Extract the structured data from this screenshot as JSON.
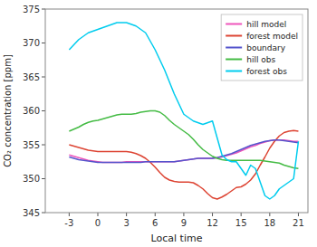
{
  "chart_data": {
    "type": "line",
    "xlabel": "Local time",
    "ylabel": "CO₂ concentration [ppm]",
    "xlim": [
      -5.5,
      22.0
    ],
    "ylim": [
      345,
      375
    ],
    "xticks": [
      -3,
      0,
      3,
      6,
      9,
      12,
      15,
      18,
      21
    ],
    "yticks": [
      345,
      350,
      355,
      360,
      365,
      370,
      375
    ],
    "grid": false,
    "legend": "upper right",
    "series": [
      {
        "name": "hill model",
        "color": "#ee55bb",
        "x": [
          -3,
          -2.5,
          -2,
          -1.5,
          -1,
          -0.5,
          0,
          0.5,
          1,
          1.5,
          2,
          2.5,
          3,
          3.5,
          4,
          4.5,
          5,
          5.5,
          6,
          6.5,
          7,
          7.5,
          8,
          8.5,
          9,
          9.5,
          10,
          10.5,
          11,
          11.5,
          12,
          12.5,
          13,
          13.5,
          14,
          14.5,
          15,
          15.5,
          16,
          16.5,
          17,
          17.5,
          18,
          18.5,
          19,
          19.5,
          20,
          20.5,
          21
        ],
        "values": [
          353.5,
          353.3,
          353.1,
          352.9,
          352.7,
          352.6,
          352.5,
          352.4,
          352.4,
          352.4,
          352.4,
          352.4,
          352.5,
          352.5,
          352.5,
          352.5,
          352.5,
          352.5,
          352.5,
          352.5,
          352.5,
          352.5,
          352.5,
          352.6,
          352.7,
          352.8,
          352.9,
          353.0,
          353.0,
          353.0,
          353.0,
          353.1,
          353.2,
          353.4,
          353.6,
          353.8,
          354.1,
          354.4,
          354.7,
          354.9,
          355.2,
          355.4,
          355.6,
          355.7,
          355.7,
          355.7,
          355.6,
          355.5,
          355.5
        ]
      },
      {
        "name": "forest model",
        "color": "#dd4433",
        "x": [
          -3,
          -2.5,
          -2,
          -1.5,
          -1,
          -0.5,
          0,
          0.5,
          1,
          1.5,
          2,
          2.5,
          3,
          3.5,
          4,
          4.5,
          5,
          5.5,
          6,
          6.5,
          7,
          7.5,
          8,
          8.5,
          9,
          9.5,
          10,
          10.5,
          11,
          11.5,
          12,
          12.5,
          13,
          13.5,
          14,
          14.5,
          15,
          15.5,
          16,
          16.5,
          17,
          17.5,
          18,
          18.5,
          19,
          19.5,
          20,
          20.5,
          21
        ],
        "values": [
          355.0,
          354.8,
          354.6,
          354.4,
          354.2,
          354.1,
          354.0,
          354.0,
          354.0,
          354.0,
          354.0,
          354.0,
          354.0,
          353.9,
          353.7,
          353.4,
          353.0,
          352.4,
          351.7,
          350.9,
          350.2,
          349.8,
          349.6,
          349.5,
          349.5,
          349.5,
          349.4,
          349.0,
          348.5,
          347.8,
          347.2,
          347.0,
          347.3,
          347.7,
          348.2,
          348.7,
          348.8,
          349.2,
          349.8,
          350.7,
          352.0,
          353.2,
          354.5,
          355.5,
          356.3,
          356.8,
          357.0,
          357.1,
          357.0
        ]
      },
      {
        "name": "boundary",
        "color": "#5555cc",
        "x": [
          -3,
          -2.5,
          -2,
          -1.5,
          -1,
          -0.5,
          0,
          0.5,
          1,
          1.5,
          2,
          2.5,
          3,
          3.5,
          4,
          4.5,
          5,
          5.5,
          6,
          6.5,
          7,
          7.5,
          8,
          8.5,
          9,
          9.5,
          10,
          10.5,
          11,
          11.5,
          12,
          12.5,
          13,
          13.5,
          14,
          14.5,
          15,
          15.5,
          16,
          16.5,
          17,
          17.5,
          18,
          18.5,
          19,
          19.5,
          20,
          20.5,
          21
        ],
        "values": [
          353.2,
          353.0,
          352.8,
          352.7,
          352.6,
          352.5,
          352.4,
          352.4,
          352.4,
          352.4,
          352.4,
          352.4,
          352.4,
          352.4,
          352.4,
          352.4,
          352.5,
          352.5,
          352.5,
          352.5,
          352.5,
          352.5,
          352.5,
          352.6,
          352.7,
          352.8,
          352.9,
          353.0,
          353.0,
          353.0,
          353.0,
          353.1,
          353.3,
          353.5,
          353.7,
          354.0,
          354.3,
          354.6,
          354.9,
          355.1,
          355.3,
          355.5,
          355.6,
          355.7,
          355.7,
          355.6,
          355.5,
          355.4,
          355.3
        ]
      },
      {
        "name": "hill obs",
        "color": "#44bb44",
        "x": [
          -3,
          -2.5,
          -2,
          -1.5,
          -1,
          -0.5,
          0,
          0.5,
          1,
          1.5,
          2,
          2.5,
          3,
          3.5,
          4,
          4.5,
          5,
          5.5,
          6,
          6.5,
          7,
          7.5,
          8,
          8.5,
          9,
          9.5,
          10,
          10.5,
          11,
          11.5,
          12,
          12.5,
          13,
          13.5,
          14,
          14.5,
          15,
          15.5,
          16,
          16.5,
          17,
          17.5,
          18,
          18.5,
          19,
          19.5,
          20,
          20.5,
          21
        ],
        "values": [
          357.0,
          357.3,
          357.6,
          358.0,
          358.3,
          358.5,
          358.6,
          358.8,
          359.0,
          359.2,
          359.4,
          359.5,
          359.5,
          359.5,
          359.6,
          359.8,
          359.9,
          360.0,
          360.0,
          359.8,
          359.3,
          358.6,
          358.0,
          357.5,
          357.0,
          356.5,
          355.8,
          355.0,
          354.3,
          353.8,
          353.3,
          353.0,
          352.8,
          352.7,
          352.7,
          352.7,
          352.7,
          352.7,
          352.7,
          352.7,
          352.7,
          352.6,
          352.5,
          352.4,
          352.3,
          352.0,
          351.8,
          351.6,
          351.5
        ]
      },
      {
        "name": "forest obs",
        "color": "#00ccee",
        "x": [
          -3,
          -2,
          -1,
          0,
          1,
          2,
          3,
          4,
          5,
          6,
          7,
          8,
          9,
          10,
          11,
          12,
          12.5,
          13,
          13.5,
          14,
          14.5,
          15,
          15.5,
          16,
          16.5,
          17,
          17.5,
          18,
          18.5,
          19,
          19.5,
          20,
          20.5,
          21
        ],
        "values": [
          369.0,
          370.5,
          371.5,
          372.0,
          372.5,
          373.0,
          373.0,
          372.5,
          371.5,
          369.0,
          366.0,
          362.5,
          359.5,
          358.5,
          358.0,
          358.5,
          356.0,
          353.5,
          352.8,
          352.5,
          352.5,
          351.5,
          350.5,
          352.0,
          351.5,
          349.5,
          347.5,
          347.0,
          347.5,
          348.5,
          349.0,
          349.5,
          350.0,
          355.5
        ]
      }
    ]
  }
}
